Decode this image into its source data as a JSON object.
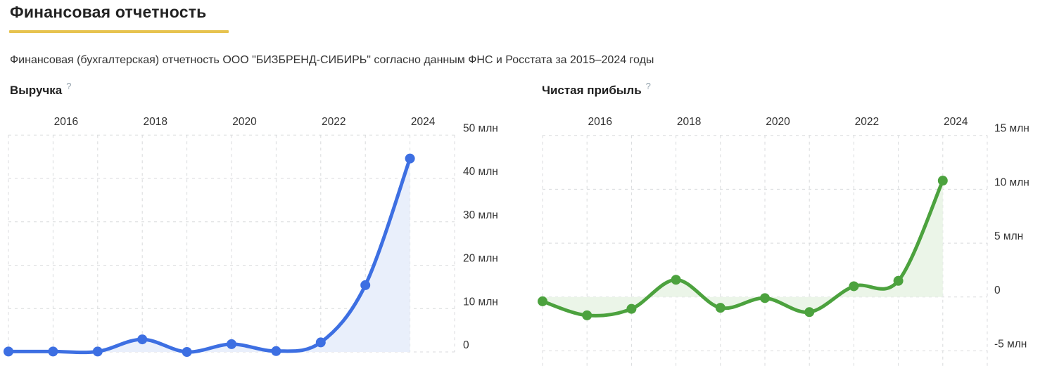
{
  "header": {
    "title": "Финансовая отчетность",
    "subtitle": "Финансовая (бухгалтерская) отчетность ООО \"БИЗБРЕНД-СИБИРЬ\" согласно данным ФНС и Росстата за 2015–2024 годы",
    "underline_color": "#e7c34f"
  },
  "chart_data": [
    {
      "id": "revenue",
      "type": "area",
      "title": "Выручка",
      "help_icon": "?",
      "unit": "млн",
      "x": [
        2015,
        2016,
        2017,
        2018,
        2019,
        2020,
        2021,
        2022,
        2023,
        2024
      ],
      "values": [
        0.1,
        0.1,
        0.1,
        2.9,
        0.0,
        1.8,
        0.2,
        2.2,
        15.4,
        44.6
      ],
      "x_tick_labels": [
        "2016",
        "2018",
        "2020",
        "2022",
        "2024"
      ],
      "x_tick_indices": [
        1,
        3,
        5,
        7,
        9
      ],
      "y_ticks": [
        0,
        10,
        20,
        30,
        40,
        50
      ],
      "y_tick_labels": [
        "0",
        "10 млн",
        "20 млн",
        "30 млн",
        "40 млн",
        "50 млн"
      ],
      "ylim": [
        0,
        50
      ],
      "xlabel": "",
      "ylabel": "",
      "grid": true,
      "legend_position": "none",
      "x_axis_position": "top",
      "y_axis_position": "right",
      "line_color": "#3d6fe2",
      "fill_color": "#e9effb",
      "grid_color": "#d8dadc",
      "label_color": "#333333"
    },
    {
      "id": "net-profit",
      "type": "area",
      "title": "Чистая прибыль",
      "help_icon": "?",
      "unit": "млн",
      "x": [
        2015,
        2016,
        2017,
        2018,
        2019,
        2020,
        2021,
        2022,
        2023,
        2024
      ],
      "values": [
        -0.4,
        -1.7,
        -1.1,
        1.6,
        -1.0,
        -0.1,
        -1.4,
        1.0,
        1.5,
        10.8
      ],
      "x_tick_labels": [
        "2016",
        "2018",
        "2020",
        "2022",
        "2024"
      ],
      "x_tick_indices": [
        1,
        3,
        5,
        7,
        9
      ],
      "y_ticks": [
        -5,
        0,
        5,
        10,
        15
      ],
      "y_tick_labels": [
        "-5 млн",
        "0",
        "5 млн",
        "10 млн",
        "15 млн"
      ],
      "ylim": [
        -5,
        15
      ],
      "xlabel": "",
      "ylabel": "",
      "grid": true,
      "legend_position": "none",
      "x_axis_position": "top",
      "y_axis_position": "right",
      "line_color": "#4ca23e",
      "fill_color": "#ebf5e8",
      "grid_color": "#d8dadc",
      "label_color": "#333333"
    }
  ]
}
